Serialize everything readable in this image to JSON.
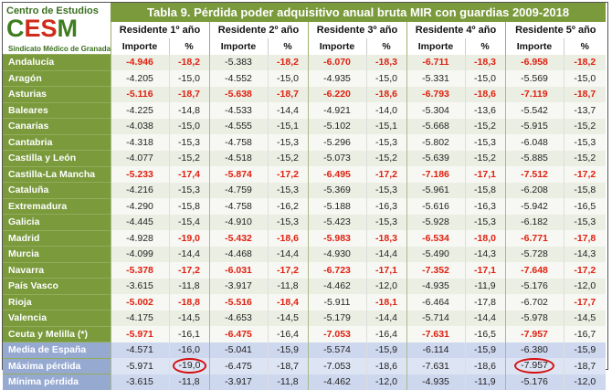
{
  "logo": {
    "line1": "Centro de Estudios",
    "brand_left": "C",
    "brand_mid": "ES",
    "brand_right": "M",
    "line3": "Sindicato Médico de Granada"
  },
  "title": "Tabla 9. Pérdida poder adquisitivo anual bruta MIR con guardias 2009-2018",
  "years": [
    "Residente 1º año",
    "Residente 2º año",
    "Residente 3º año",
    "Residente 4º año",
    "Residente 5º año"
  ],
  "col_importe": "Importe",
  "col_pct": "%",
  "colors": {
    "header_green": "#7a9a3c",
    "summary_blue": "#96a9d1",
    "highlight_red": "#e02010"
  },
  "rows": [
    {
      "region": "Andalucía",
      "values": [
        "-4.946",
        "-18,2",
        "-5.383",
        "-18,2",
        "-6.070",
        "-18,3",
        "-6.711",
        "-18,3",
        "-6.958",
        "-18,2"
      ],
      "red": [
        0,
        1,
        3,
        4,
        5,
        6,
        7,
        8,
        9
      ]
    },
    {
      "region": "Aragón",
      "values": [
        "-4.205",
        "-15,0",
        "-4.552",
        "-15,0",
        "-4.935",
        "-15,0",
        "-5.331",
        "-15,0",
        "-5.569",
        "-15,0"
      ],
      "red": []
    },
    {
      "region": "Asturias",
      "values": [
        "-5.116",
        "-18,7",
        "-5.638",
        "-18,7",
        "-6.220",
        "-18,6",
        "-6.793",
        "-18,6",
        "-7.119",
        "-18,7"
      ],
      "red": [
        0,
        1,
        2,
        3,
        4,
        5,
        6,
        7,
        8,
        9
      ]
    },
    {
      "region": "Baleares",
      "values": [
        "-4.225",
        "-14,8",
        "-4.533",
        "-14,4",
        "-4.921",
        "-14,0",
        "-5.304",
        "-13,6",
        "-5.542",
        "-13,7"
      ],
      "red": []
    },
    {
      "region": "Canarias",
      "values": [
        "-4.038",
        "-15,0",
        "-4.555",
        "-15,1",
        "-5.102",
        "-15,1",
        "-5.668",
        "-15,2",
        "-5.915",
        "-15,2"
      ],
      "red": []
    },
    {
      "region": "Cantabria",
      "values": [
        "-4.318",
        "-15,3",
        "-4.758",
        "-15,3",
        "-5.296",
        "-15,3",
        "-5.802",
        "-15,3",
        "-6.048",
        "-15,3"
      ],
      "red": []
    },
    {
      "region": "Castilla y León",
      "values": [
        "-4.077",
        "-15,2",
        "-4.518",
        "-15,2",
        "-5.073",
        "-15,2",
        "-5.639",
        "-15,2",
        "-5.885",
        "-15,2"
      ],
      "red": []
    },
    {
      "region": "Castilla-La Mancha",
      "values": [
        "-5.233",
        "-17,4",
        "-5.874",
        "-17,2",
        "-6.495",
        "-17,2",
        "-7.186",
        "-17,1",
        "-7.512",
        "-17,2"
      ],
      "red": [
        0,
        1,
        2,
        3,
        4,
        5,
        6,
        7,
        8,
        9
      ]
    },
    {
      "region": "Cataluña",
      "values": [
        "-4.216",
        "-15,3",
        "-4.759",
        "-15,3",
        "-5.369",
        "-15,3",
        "-5.961",
        "-15,8",
        "-6.208",
        "-15,8"
      ],
      "red": []
    },
    {
      "region": "Extremadura",
      "values": [
        "-4.290",
        "-15,8",
        "-4.758",
        "-16,2",
        "-5.188",
        "-16,3",
        "-5.616",
        "-16,3",
        "-5.942",
        "-16,5"
      ],
      "red": []
    },
    {
      "region": "Galicia",
      "values": [
        "-4.445",
        "-15,4",
        "-4.910",
        "-15,3",
        "-5.423",
        "-15,3",
        "-5.928",
        "-15,3",
        "-6.182",
        "-15,3"
      ],
      "red": []
    },
    {
      "region": "Madrid",
      "values": [
        "-4.928",
        "-19,0",
        "-5.432",
        "-18,6",
        "-5.983",
        "-18,3",
        "-6.534",
        "-18,0",
        "-6.771",
        "-17,8"
      ],
      "red": [
        1,
        2,
        3,
        4,
        5,
        6,
        7,
        8,
        9
      ]
    },
    {
      "region": "Murcia",
      "values": [
        "-4.099",
        "-14,4",
        "-4.468",
        "-14,4",
        "-4.930",
        "-14,4",
        "-5.490",
        "-14,3",
        "-5.728",
        "-14,3"
      ],
      "red": []
    },
    {
      "region": "Navarra",
      "values": [
        "-5.378",
        "-17,2",
        "-6.031",
        "-17,2",
        "-6.723",
        "-17,1",
        "-7.352",
        "-17,1",
        "-7.648",
        "-17,2"
      ],
      "red": [
        0,
        1,
        2,
        3,
        4,
        5,
        6,
        7,
        8,
        9
      ]
    },
    {
      "region": "País Vasco",
      "values": [
        "-3.615",
        "-11,8",
        "-3.917",
        "-11,8",
        "-4.462",
        "-12,0",
        "-4.935",
        "-11,9",
        "-5.176",
        "-12,0"
      ],
      "red": []
    },
    {
      "region": "Rioja",
      "values": [
        "-5.002",
        "-18,8",
        "-5.516",
        "-18,4",
        "-5.911",
        "-18,1",
        "-6.464",
        "-17,8",
        "-6.702",
        "-17,7"
      ],
      "red": [
        0,
        1,
        2,
        3,
        5,
        9
      ]
    },
    {
      "region": "Valencia",
      "values": [
        "-4.175",
        "-14,5",
        "-4.653",
        "-14,5",
        "-5.179",
        "-14,4",
        "-5.714",
        "-14,4",
        "-5.978",
        "-14,5"
      ],
      "red": []
    },
    {
      "region": "Ceuta y Melilla (*)",
      "values": [
        "-5.971",
        "-16,1",
        "-6.475",
        "-16,4",
        "-7.053",
        "-16,4",
        "-7.631",
        "-16,5",
        "-7.957",
        "-16,7"
      ],
      "red": [
        0,
        2,
        4,
        6,
        8
      ]
    }
  ],
  "summary": [
    {
      "region": "Media de España",
      "values": [
        "-4.571",
        "-16,0",
        "-5.041",
        "-15,9",
        "-5.574",
        "-15,9",
        "-6.114",
        "-15,9",
        "-6.380",
        "-15,9"
      ]
    },
    {
      "region": "Máxima pérdida",
      "values": [
        "-5.971",
        "-19,0",
        "-6.475",
        "-18,7",
        "-7.053",
        "-18,6",
        "-7.631",
        "-18,6",
        "-7.957",
        "-18,7"
      ],
      "circled": [
        1,
        8
      ]
    },
    {
      "region": "Mínima pérdida",
      "values": [
        "-3.615",
        "-11,8",
        "-3.917",
        "-11,8",
        "-4.462",
        "-12,0",
        "-4.935",
        "-11,9",
        "-5.176",
        "-12,0"
      ]
    }
  ]
}
